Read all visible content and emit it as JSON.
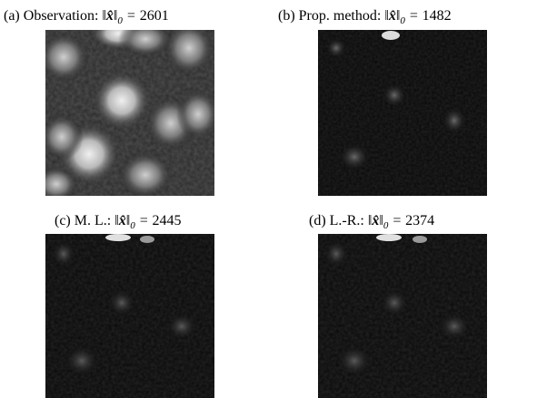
{
  "panels": [
    {
      "label": "(a) Observation:",
      "norm_value": "2601"
    },
    {
      "label": "(b) Prop. method:",
      "norm_value": "1482"
    },
    {
      "label": "(c) M. L.:",
      "norm_value": "2445"
    },
    {
      "label": "(d) L.-R.:",
      "norm_value": "2374"
    }
  ],
  "norm_symbol": {
    "open": "‖",
    "var": "x̂",
    "close": "‖",
    "subscript": "0",
    "equals": "="
  }
}
